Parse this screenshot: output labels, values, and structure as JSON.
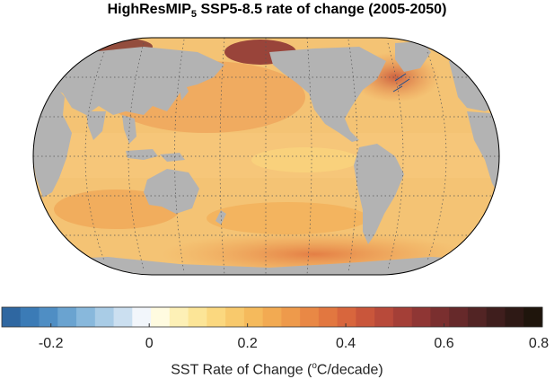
{
  "title": {
    "main": "HighResMIP",
    "subscript": "5",
    "rest": " SSP5-8.5 rate of change (2005-2050)"
  },
  "colorbar": {
    "label_before": "SST Rate of Change (",
    "label_sup": "o",
    "label_after": "C/decade)",
    "range": [
      -0.3,
      0.8
    ],
    "ticks": [
      "-0.2",
      "0",
      "0.2",
      "0.4",
      "0.6",
      "0.8"
    ],
    "tick_values": [
      -0.2,
      0,
      0.2,
      0.4,
      0.6,
      0.8
    ],
    "colors": [
      "#2f67a1",
      "#3b7bb6",
      "#4f8ec4",
      "#6aa3d0",
      "#88b8dc",
      "#a9cce6",
      "#cbdff0",
      "#f2f6fb",
      "#fffbe0",
      "#fdf0b6",
      "#fce597",
      "#fbd87f",
      "#f8c96c",
      "#f5ba5c",
      "#f2aa52",
      "#ee9a4b",
      "#e98845",
      "#e27740",
      "#d8663d",
      "#c9563b",
      "#b84a3a",
      "#a43f37",
      "#8f3634",
      "#7a2f2f",
      "#66292a",
      "#522424",
      "#3f1e1d",
      "#2e1915",
      "#1f150c"
    ]
  },
  "map": {
    "projection": "Robinson (equal-area)",
    "land_color": "#b3b3b3",
    "ocean_base_color": "#f4c374"
  }
}
